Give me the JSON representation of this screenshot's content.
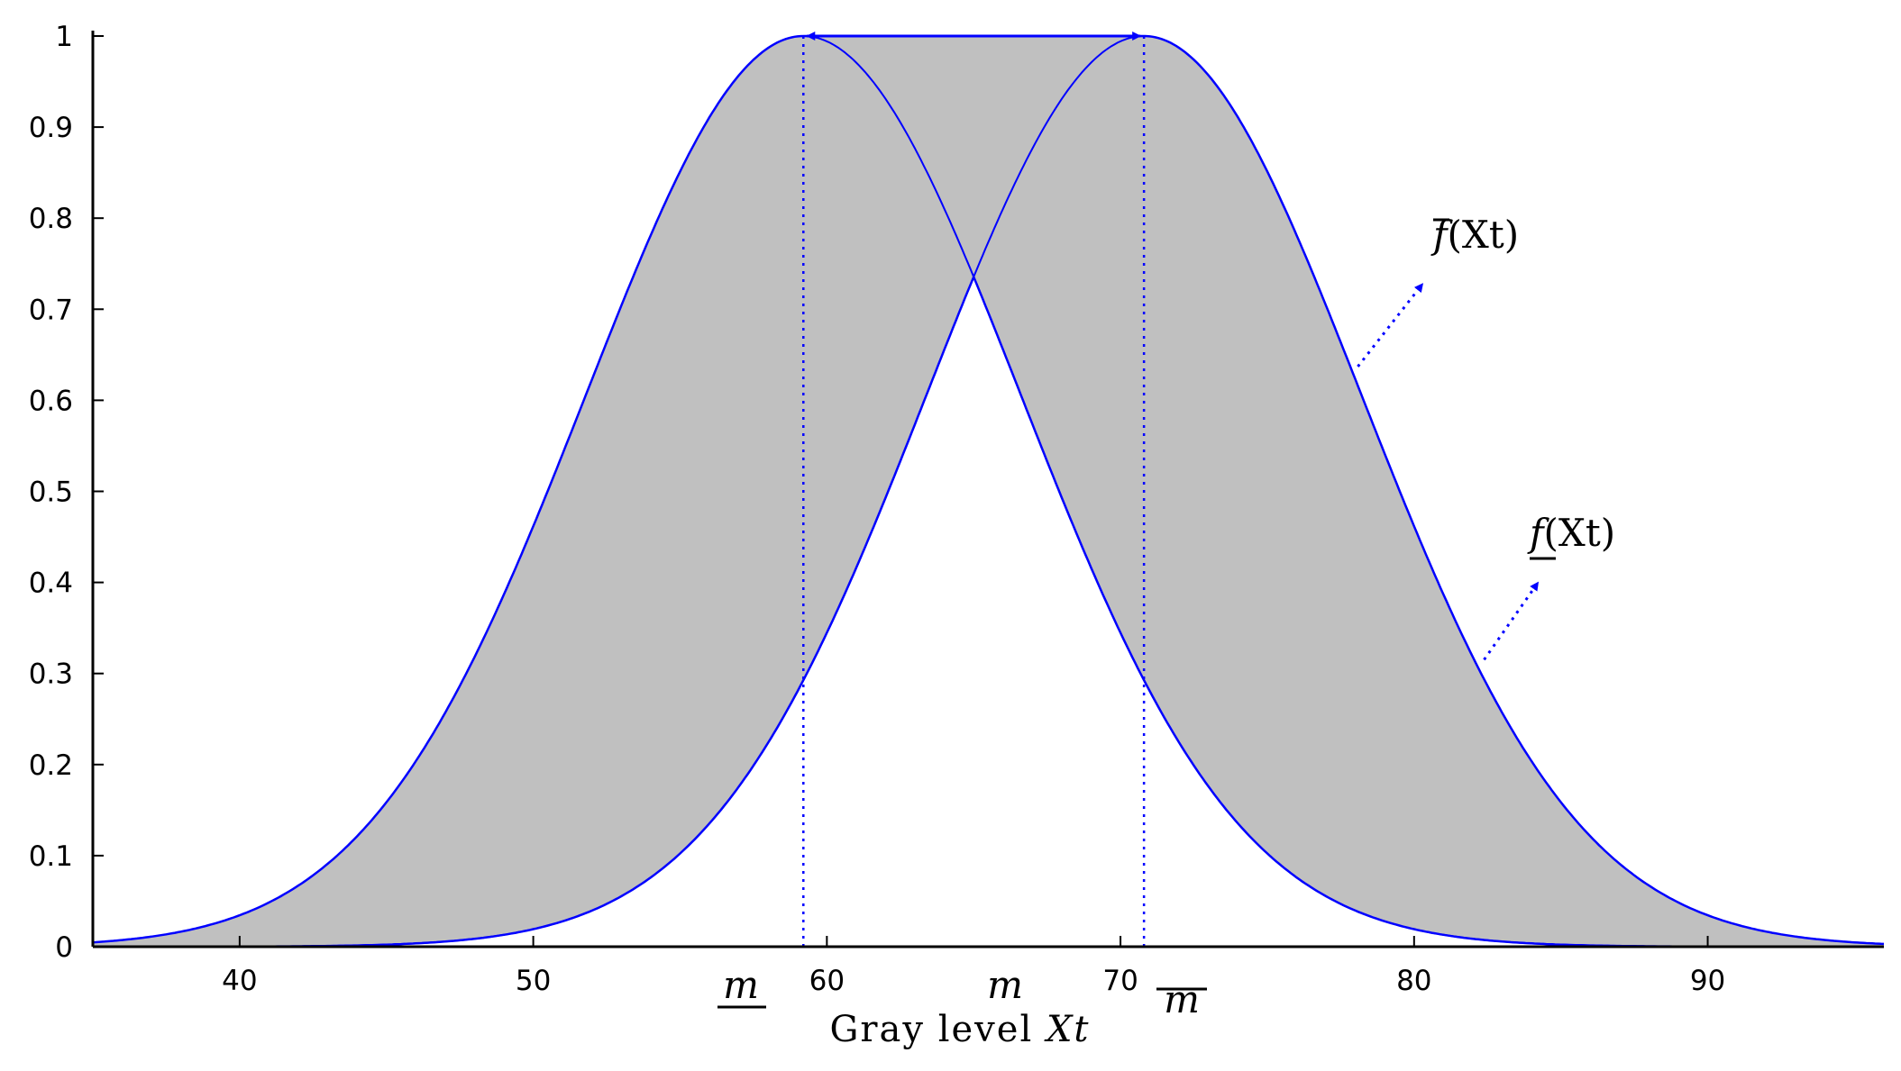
{
  "chart_data": {
    "type": "area",
    "xlabel_prefix": "Gray level ",
    "xlabel_var": "Xt",
    "xlim": [
      35,
      96
    ],
    "ylim": [
      0,
      1
    ],
    "xticks": [
      40,
      50,
      60,
      70,
      80,
      90
    ],
    "yticks": [
      0,
      0.1,
      0.2,
      0.3,
      0.4,
      0.5,
      0.6,
      0.7,
      0.8,
      0.9,
      1
    ],
    "xtick_labels": [
      "40",
      "50",
      "60",
      "70",
      "80",
      "90"
    ],
    "ytick_labels": [
      "0",
      "0.1",
      "0.2",
      "0.3",
      "0.4",
      "0.5",
      "0.6",
      "0.7",
      "0.8",
      "0.9",
      "1"
    ],
    "grid": false,
    "series": [
      {
        "name": "f̄(Xt)",
        "role": "upper",
        "m_low": 59.2,
        "m_high": 70.8,
        "sigma": 7.4
      },
      {
        "name": "f(Xt)",
        "role": "lower",
        "m_low": 59.2,
        "m_high": 70.8,
        "sigma": 7.4
      }
    ],
    "mean_markers": {
      "m_lower": 59.2,
      "m": 65.0,
      "m_upper": 70.8
    },
    "mean_labels": {
      "m_lower": "m",
      "m": "m",
      "m_upper": "m"
    },
    "annotations": {
      "upper_label_text": "f",
      "lower_label_text": "f",
      "label_suffix": "(Xt)"
    },
    "colors": {
      "curve": "#0000ff",
      "fill": "#c0c0c0",
      "axis": "#000000",
      "background": "#ffffff"
    }
  }
}
